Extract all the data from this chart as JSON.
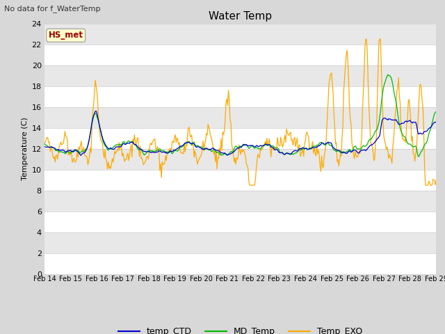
{
  "title": "Water Temp",
  "subtitle": "No data for f_WaterTemp",
  "ylabel": "Temperature (C)",
  "ylim": [
    0,
    24
  ],
  "yticks": [
    0,
    2,
    4,
    6,
    8,
    10,
    12,
    14,
    16,
    18,
    20,
    22,
    24
  ],
  "fig_bg_color": "#d8d8d8",
  "plot_bg_color": "#e8e8e8",
  "band_color_light": "#f0f0f0",
  "band_color_dark": "#e0e0e0",
  "line_colors": {
    "temp_CTD": "#0000cc",
    "MD_Temp": "#00bb00",
    "Temp_EXO": "#ffaa00"
  },
  "legend_label": "HS_met",
  "legend_text_color": "#990000",
  "legend_box_facecolor": "#ffffcc",
  "legend_box_edgecolor": "#aaaaaa",
  "date_labels": [
    "Feb 14",
    "Feb 15",
    "Feb 16",
    "Feb 17",
    "Feb 18",
    "Feb 19",
    "Feb 20",
    "Feb 21",
    "Feb 22",
    "Feb 23",
    "Feb 24",
    "Feb 25",
    "Feb 26",
    "Feb 27",
    "Feb 28",
    "Feb 29"
  ],
  "n_points": 480
}
